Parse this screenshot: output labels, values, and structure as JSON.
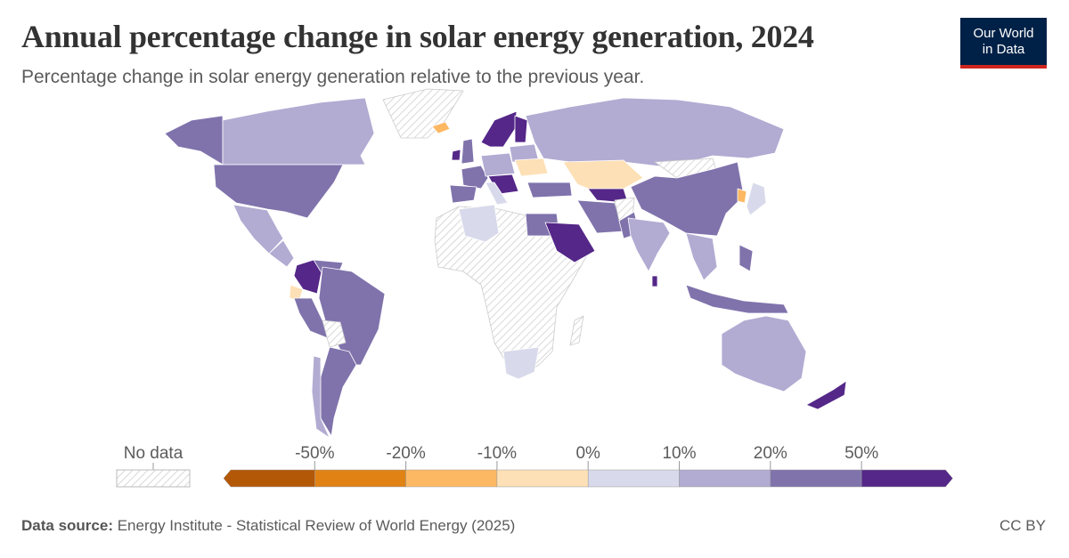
{
  "title": "Annual percentage change in solar energy generation, 2024",
  "subtitle": "Percentage change in solar energy generation relative to the previous year.",
  "logo": {
    "line1": "Our World",
    "line2": "in Data"
  },
  "legend": {
    "no_data_label": "No data",
    "ticks": [
      "-50%",
      "-20%",
      "-10%",
      "0%",
      "10%",
      "20%",
      "50%"
    ],
    "bins": [
      {
        "range": "< -50%",
        "color": "#b35806"
      },
      {
        "range": "-50% to -20%",
        "color": "#e08214"
      },
      {
        "range": "-20% to -10%",
        "color": "#fdb863"
      },
      {
        "range": "-10% to 0%",
        "color": "#fee0b6"
      },
      {
        "range": "0% to 10%",
        "color": "#d8daeb"
      },
      {
        "range": "10% to 20%",
        "color": "#b2abd2"
      },
      {
        "range": "20% to 50%",
        "color": "#8073ac"
      },
      {
        "range": "> 50%",
        "color": "#542788"
      }
    ]
  },
  "footer": {
    "source_label": "Data source:",
    "source": "Energy Institute - Statistical Review of World Energy (2025)",
    "license": "CC BY"
  }
}
